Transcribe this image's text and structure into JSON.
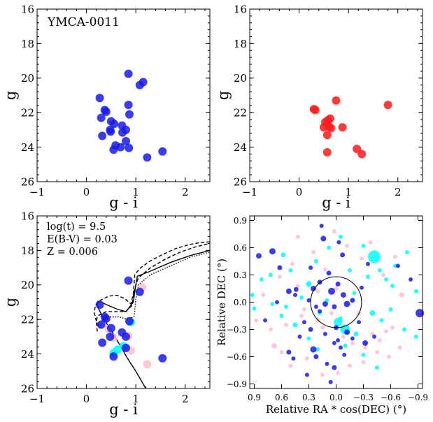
{
  "chart_data": [
    {
      "type": "scatter",
      "name": "cmd-candidates",
      "annotation": "YMCA-0011",
      "xlabel": "g - i",
      "ylabel": "g",
      "xlim": [
        -1,
        2.5
      ],
      "ylim": [
        26,
        16
      ],
      "xticks": [
        -1,
        0,
        1,
        2
      ],
      "yticks": [
        16,
        18,
        20,
        22,
        24,
        26
      ],
      "xticklabels": [
        "−1",
        "0",
        "1",
        "2"
      ],
      "yticklabels": [
        "16",
        "18",
        "20",
        "22",
        "24",
        "26"
      ],
      "series": [
        {
          "name": "members",
          "color": "#1a1ae6",
          "x": [
            0.85,
            1.15,
            1.08,
            0.27,
            0.85,
            0.37,
            0.4,
            0.87,
            0.3,
            0.5,
            0.72,
            0.8,
            0.56,
            0.48,
            0.73,
            0.49,
            0.32,
            0.8,
            0.59,
            0.69,
            0.86,
            0.55,
            1.54,
            1.23
          ],
          "y": [
            19.75,
            20.23,
            20.4,
            21.15,
            21.55,
            21.85,
            21.95,
            22.1,
            22.3,
            22.5,
            22.75,
            23.0,
            22.65,
            23.0,
            23.15,
            23.1,
            23.35,
            23.65,
            23.9,
            24.0,
            24.05,
            24.15,
            24.25,
            24.6
          ]
        }
      ]
    },
    {
      "type": "scatter",
      "name": "cmd-comparison",
      "xlabel": "g - i",
      "ylabel": "g",
      "xlim": [
        -1,
        2.5
      ],
      "ylim": [
        26,
        16
      ],
      "xticks": [
        -1,
        0,
        1,
        2
      ],
      "yticks": [
        16,
        18,
        20,
        22,
        24,
        26
      ],
      "xticklabels": [
        "−1",
        "0",
        "1",
        "2"
      ],
      "yticklabels": [
        "16",
        "18",
        "20",
        "22",
        "24",
        "26"
      ],
      "series": [
        {
          "name": "field",
          "color": "#ff1a1a",
          "x": [
            0.75,
            1.8,
            0.3,
            0.33,
            0.63,
            0.58,
            0.53,
            0.6,
            0.5,
            0.65,
            0.88,
            0.57,
            1.17,
            1.27,
            0.57
          ],
          "y": [
            21.3,
            21.55,
            21.8,
            21.85,
            22.35,
            22.45,
            22.55,
            22.8,
            22.85,
            22.9,
            22.85,
            23.3,
            24.1,
            24.4,
            24.3
          ]
        }
      ]
    },
    {
      "type": "scatter",
      "name": "cmd-isochrone",
      "annotations": [
        "log(t) = 9.5",
        "E(B-V) = 0.03",
        "Z = 0.006"
      ],
      "xlabel": "g - i",
      "ylabel": "g",
      "xlim": [
        -1,
        2.5
      ],
      "ylim": [
        26,
        16
      ],
      "xticks": [
        -1,
        0,
        1,
        2
      ],
      "yticks": [
        16,
        18,
        20,
        22,
        24,
        26
      ],
      "xticklabels": [
        "−1",
        "0",
        "1",
        "2"
      ],
      "yticklabels": [
        "16",
        "18",
        "20",
        "22",
        "24",
        "26"
      ],
      "series": [
        {
          "name": "members",
          "color": "#1a1ae6",
          "x": [
            0.85,
            1.08,
            0.27,
            0.37,
            0.4,
            0.87,
            0.3,
            0.5,
            0.72,
            0.8,
            0.48,
            0.32,
            0.8,
            0.55,
            1.54
          ],
          "y": [
            19.75,
            20.4,
            21.15,
            21.85,
            21.95,
            22.1,
            22.3,
            22.5,
            22.75,
            23.0,
            23.0,
            23.35,
            23.65,
            24.15,
            24.25
          ]
        },
        {
          "name": "cyan",
          "color": "#00ffff",
          "x": [
            0.9,
            0.75,
            0.63,
            0.55
          ],
          "y": [
            22.15,
            23.55,
            23.75,
            23.95
          ]
        },
        {
          "name": "pink",
          "color": "#ffc0cb",
          "x": [
            1.13,
            0.45,
            0.55,
            0.85,
            0.9,
            1.23
          ],
          "y": [
            20.15,
            22.55,
            23.05,
            22.95,
            23.8,
            24.6
          ]
        }
      ],
      "isochrones": [
        {
          "style": "solid",
          "g_i": [
            1.2,
            1.0,
            0.82,
            0.7,
            0.6,
            0.5,
            0.4,
            0.32,
            0.25,
            0.22,
            0.23,
            0.3,
            0.45,
            0.62,
            0.8,
            0.95,
            1.0,
            1.03,
            1.3,
            1.7,
            2.1,
            2.5
          ],
          "g": [
            26.0,
            25.0,
            24.2,
            23.6,
            23.1,
            22.6,
            22.2,
            21.8,
            21.4,
            21.1,
            20.95,
            21.0,
            21.2,
            21.4,
            21.55,
            21.0,
            20.0,
            19.5,
            19.2,
            18.7,
            18.3,
            18.0
          ]
        },
        {
          "style": "dashed",
          "g_i": [
            0.25,
            0.19,
            0.16,
            0.18,
            0.28,
            0.45,
            0.62,
            0.78,
            0.9,
            0.95,
            0.98,
            1.1,
            1.3,
            1.5,
            1.8,
            2.1,
            2.3,
            2.5
          ],
          "g": [
            22.4,
            22.0,
            21.6,
            21.2,
            20.9,
            20.65,
            20.6,
            20.8,
            21.1,
            20.5,
            19.4,
            19.0,
            18.6,
            18.3,
            17.9,
            17.65,
            17.55,
            17.5
          ]
        },
        {
          "style": "dashed",
          "g_i": [
            0.22,
            0.2,
            0.22,
            0.4,
            0.62,
            0.8,
            0.92,
            0.97,
            1.05,
            1.3,
            1.6,
            1.9,
            2.2,
            2.5
          ],
          "g": [
            22.7,
            22.2,
            21.8,
            21.55,
            21.55,
            21.55,
            21.2,
            20.3,
            19.6,
            19.0,
            18.5,
            18.1,
            17.8,
            17.6
          ]
        },
        {
          "style": "dotted",
          "g_i": [
            0.28,
            0.3,
            0.45,
            0.65,
            0.85,
            0.97,
            1.0,
            1.05,
            1.3,
            1.7,
            2.1,
            2.5
          ],
          "g": [
            22.5,
            22.1,
            21.85,
            21.85,
            22.0,
            21.8,
            20.8,
            20.0,
            19.4,
            18.9,
            18.4,
            18.1
          ]
        }
      ]
    },
    {
      "type": "scatter",
      "name": "sky-map",
      "xlabel": "Relative RA * cos(DEC) (°)",
      "ylabel": "Relative DEC (°)",
      "xlim": [
        0.95,
        -0.95
      ],
      "ylim": [
        -0.95,
        0.95
      ],
      "xticks": [
        0.9,
        0.6,
        0.3,
        0.0,
        -0.3,
        -0.6,
        -0.9
      ],
      "yticks": [
        0.9,
        0.6,
        0.3,
        0.0,
        -0.3,
        -0.6,
        -0.9
      ],
      "xticklabels": [
        "0.9",
        "0.6",
        "0.3",
        "0.0",
        "−0.3",
        "−0.6",
        "−0.9"
      ],
      "yticklabels": [
        "0.9",
        "0.6",
        "0.3",
        "0.0",
        "−0.3",
        "−0.6",
        "−0.9"
      ],
      "circle": {
        "center": [
          0.0,
          0.0
        ],
        "radius": 0.28
      },
      "series": [
        {
          "name": "members",
          "color": "#1a1ae6",
          "x": [
            0.14,
            0.7,
            0.85,
            0.62,
            0.52,
            0.44,
            0.28,
            0.25,
            0.18,
            0.08,
            0.05,
            -0.02,
            -0.08,
            -0.12,
            -0.18,
            0.3,
            0.22,
            0.12,
            0.02,
            0.45,
            0.65,
            0.78,
            -0.35,
            -0.68,
            -0.82,
            -0.92,
            0.35,
            0.28,
            0.12,
            0.0,
            -0.12,
            -0.25,
            0.02,
            -0.05,
            -0.32,
            0.22,
            0.02,
            0.18,
            0.4,
            0.52,
            0.25,
            0.1,
            -0.02,
            0.47,
            0.32,
            0.16,
            -0.03,
            -0.07,
            -0.18,
            -0.09,
            -0.42,
            -0.28,
            0.06
          ],
          "y": [
            0.7,
            0.56,
            0.51,
            0.38,
            0.12,
            0.14,
            0.38,
            0.15,
            0.22,
            0.32,
            0.12,
            0.2,
            0.08,
            -0.02,
            0.02,
            0.02,
            -0.05,
            -0.02,
            -0.05,
            0.08,
            0.0,
            -0.2,
            0.42,
            0.4,
            0.25,
            -0.12,
            -0.22,
            -0.3,
            -0.35,
            -0.28,
            -0.33,
            -0.22,
            -0.45,
            -0.5,
            -0.45,
            -0.6,
            -0.72,
            -0.1,
            -0.38,
            -0.55,
            -0.52,
            -0.68,
            -0.42,
            -0.62,
            -0.8,
            0.84,
            0.66,
            0.52,
            -0.4,
            -0.58,
            -0.38,
            0.16,
            -0.88
          ],
          "sizes": [
            4,
            4.5,
            4,
            3.5,
            4,
            3.5,
            3,
            4,
            3.5,
            3.5,
            5,
            3.5,
            4,
            4.5,
            3.5,
            3,
            3,
            4,
            3.5,
            3,
            3,
            3,
            3,
            3,
            3,
            6,
            3,
            3.5,
            3,
            3.5,
            4,
            3,
            3,
            3,
            4,
            3.5,
            3.5,
            3,
            3,
            3.5,
            4.5,
            3,
            3,
            3,
            3,
            3,
            3,
            3.5,
            3,
            3,
            3,
            3,
            3
          ]
        },
        {
          "name": "cyan",
          "color": "#00ffff",
          "x": [
            0.92,
            0.82,
            0.58,
            0.55,
            0.38,
            0.22,
            0.08,
            -0.05,
            -0.15,
            -0.3,
            -0.42,
            -0.55,
            -0.65,
            -0.78,
            -0.88,
            0.9,
            0.7,
            0.6,
            0.5,
            0.3,
            0.18,
            -0.02,
            -0.1,
            -0.22,
            -0.4,
            -0.5,
            -0.6,
            -0.75,
            -0.88,
            0.72,
            0.45,
            0.3,
            0.1,
            -0.05,
            -0.2,
            -0.35,
            -0.48,
            -0.62,
            0.2,
            -0.1,
            -0.3,
            -0.45
          ],
          "y": [
            0.08,
            0.25,
            0.52,
            -0.05,
            0.05,
            0.45,
            0.6,
            0.72,
            0.35,
            0.62,
            0.5,
            0.25,
            0.4,
            0.55,
            0.12,
            -0.07,
            -0.02,
            -0.15,
            0.35,
            0.2,
            -0.12,
            -0.22,
            -0.3,
            -0.35,
            -0.12,
            -0.2,
            -0.08,
            -0.3,
            -0.38,
            0.3,
            -0.25,
            -0.4,
            0.02,
            -0.18,
            0.1,
            0.28,
            0.35,
            0.18,
            -0.52,
            -0.48,
            -0.58,
            -0.72
          ],
          "sizes": [
            3,
            3,
            3.5,
            3,
            3,
            3,
            3,
            3,
            3,
            3,
            9,
            3,
            3,
            3,
            3,
            3,
            3,
            3,
            3,
            4,
            3,
            6,
            7,
            3.5,
            4,
            3,
            3,
            3,
            3,
            3,
            3.5,
            3,
            3,
            3,
            3,
            3,
            3,
            3,
            3,
            3,
            3,
            3
          ]
        },
        {
          "name": "pink",
          "color": "#ffc0cb",
          "x": [
            0.8,
            0.62,
            0.48,
            0.42,
            0.25,
            0.12,
            0.02,
            -0.12,
            -0.28,
            -0.38,
            -0.52,
            -0.65,
            -0.72,
            0.88,
            0.72,
            0.55,
            0.38,
            0.2,
            0.05,
            -0.08,
            -0.18,
            -0.32,
            -0.45,
            -0.58,
            -0.7,
            0.68,
            0.5,
            0.32,
            0.15,
            -0.02,
            -0.15,
            -0.3,
            -0.48,
            -0.62,
            0.42,
            0.2,
            0.0,
            -0.18,
            -0.4,
            0.6,
            -0.55,
            0.35,
            0.15,
            -0.05,
            -0.25
          ],
          "y": [
            0.08,
            0.28,
            0.42,
            0.72,
            0.55,
            0.36,
            0.78,
            0.62,
            0.48,
            0.66,
            0.3,
            0.5,
            0.08,
            -0.2,
            -0.3,
            -0.25,
            -0.15,
            -0.2,
            -0.12,
            -0.38,
            -0.45,
            -0.5,
            -0.55,
            -0.6,
            -0.5,
            -0.48,
            -0.7,
            -0.62,
            -0.8,
            -0.78,
            -0.7,
            -0.66,
            -0.42,
            -0.28,
            0.18,
            0.12,
            0.15,
            0.02,
            -0.35,
            -0.55,
            -0.32,
            -0.08,
            -0.28,
            -0.18,
            -0.12
          ],
          "sizes": [
            3,
            3,
            3,
            3,
            3,
            3,
            3,
            3,
            3,
            3,
            3,
            3,
            3.5,
            3,
            3,
            3,
            3,
            3.5,
            3,
            3,
            3,
            3,
            3,
            3,
            3,
            4,
            3,
            3,
            3,
            3,
            3,
            3,
            3,
            3,
            3,
            3,
            3,
            3,
            3,
            3,
            3,
            3,
            3,
            3,
            3
          ]
        }
      ]
    }
  ]
}
